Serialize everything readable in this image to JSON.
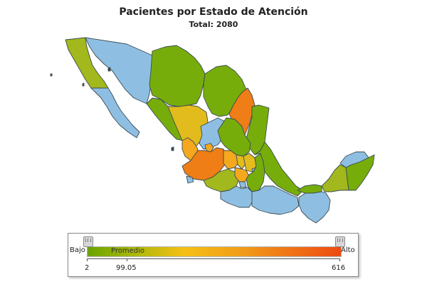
{
  "title": "Pacientes por Estado de Atención",
  "subtitle": "Total: 2080",
  "legend": {
    "low_label": "Bajo",
    "high_label": "Alto",
    "mid_label": "Promedio",
    "min_value": "2",
    "avg_value": "99.05",
    "max_value": "616"
  },
  "colors": {
    "green": "#77ad0b",
    "olive": "#a2b81c",
    "yellow": "#e2bb1c",
    "orange_light": "#f5a81e",
    "orange": "#ef7e16",
    "blue": "#8ebfe2",
    "border": "#3a4a52"
  }
}
